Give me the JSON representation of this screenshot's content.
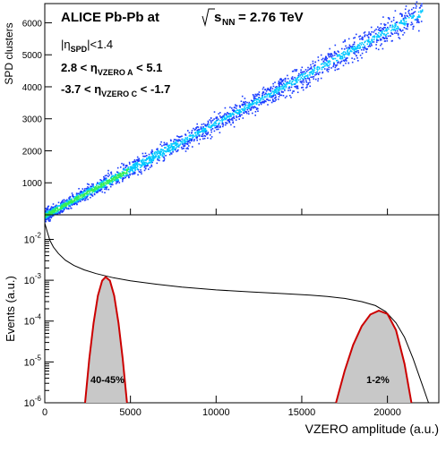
{
  "figure": {
    "header_title": "ALICE Pb-Pb at",
    "header_energy": "= 2.76 TeV",
    "header_energy_prefix": "s",
    "header_energy_sub": "NN",
    "cuts": {
      "eta_spd": {
        "pre": "|η",
        "sub": "SPD",
        "post": "|<1.4"
      },
      "vzero_a": {
        "pre": "2.8 < η",
        "sub": "VZERO A",
        "post": " < 5.1"
      },
      "vzero_c": {
        "pre": "-3.7 < η",
        "sub": "VZERO C",
        "post": " < -1.7"
      }
    },
    "bin_labels": {
      "peripheral": "40-45%",
      "central": "1-2%"
    }
  },
  "chart_data": [
    {
      "type": "heatmap",
      "ylabel": "SPD clusters",
      "xlim": [
        0,
        23000
      ],
      "ylim": [
        0,
        6600
      ],
      "yticks": [
        1000,
        2000,
        3000,
        4000,
        5000,
        6000
      ],
      "ytick_labels": [
        "1000",
        "2000",
        "3000",
        "4000",
        "5000",
        "6000"
      ],
      "band": {
        "x": [
          0,
          22000
        ],
        "y": [
          0,
          6350
        ]
      },
      "colors": {
        "low": "#1a3cff",
        "mid": "#00c8ff",
        "high": "#33ee55"
      }
    },
    {
      "type": "line",
      "xlabel": "VZERO amplitude (a.u.)",
      "ylabel": "Events (a.u.)",
      "log_y": true,
      "xlim": [
        0,
        23000
      ],
      "ylim": [
        1e-06,
        0.04
      ],
      "xticks": [
        0,
        5000,
        10000,
        15000,
        20000
      ],
      "xtick_labels": [
        "0",
        "5000",
        "10000",
        "15000",
        "20000"
      ],
      "yticks": [
        0.01,
        0.001,
        0.0001,
        1e-05,
        1e-06
      ],
      "ytick_labels": [
        {
          "base": "10",
          "exp": "-2"
        },
        {
          "base": "10",
          "exp": "-3"
        },
        {
          "base": "10",
          "exp": "-4"
        },
        {
          "base": "10",
          "exp": "-5"
        },
        {
          "base": "10",
          "exp": "-6"
        }
      ],
      "series": [
        {
          "color": "#000000",
          "x": [
            0,
            150,
            300,
            500,
            800,
            1200,
            1700,
            2300,
            3000,
            4000,
            5000,
            6500,
            8000,
            10000,
            12000,
            14000,
            15500,
            16500,
            17500,
            18500,
            19300,
            19900,
            20500,
            21000,
            21500,
            22000,
            22400
          ],
          "y": [
            0.025,
            0.015,
            0.0095,
            0.0065,
            0.0045,
            0.0031,
            0.0023,
            0.0018,
            0.00145,
            0.00115,
            0.00097,
            0.0008,
            0.00068,
            0.00058,
            0.00052,
            0.00047,
            0.00043,
            0.0004,
            0.00036,
            0.0003,
            0.00024,
            0.00017,
            9e-05,
            4e-05,
            1.2e-05,
            3e-06,
            1e-06
          ]
        },
        {
          "name": "40-45%",
          "color": "#cc0000",
          "fill": "#c8c8c8",
          "x": [
            2350,
            2600,
            2850,
            3100,
            3350,
            3550,
            3800,
            4050,
            4300,
            4550,
            4800
          ],
          "y": [
            1e-06,
            1.2e-05,
            9e-05,
            0.00042,
            0.00098,
            0.0012,
            0.00098,
            0.00042,
            9e-05,
            1.2e-05,
            1e-06
          ]
        },
        {
          "name": "1-2%",
          "color": "#cc0000",
          "fill": "#c8c8c8",
          "x": [
            17000,
            17500,
            18000,
            18500,
            19000,
            19500,
            20000,
            20500,
            21000,
            21400
          ],
          "y": [
            1e-06,
            6e-06,
            2.6e-05,
            7.5e-05,
            0.000145,
            0.00018,
            0.00015,
            6e-05,
            9e-06,
            1e-06
          ]
        }
      ]
    }
  ]
}
